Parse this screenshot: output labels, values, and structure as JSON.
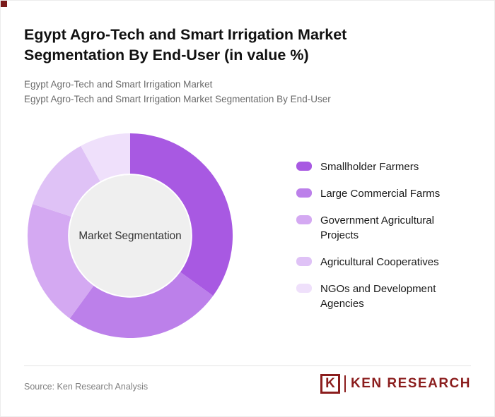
{
  "page": {
    "title": "Egypt Agro-Tech and Smart Irrigation Market Segmentation By End-User (in value %)",
    "subtitle1": "Egypt Agro-Tech and Smart Irrigation Market",
    "subtitle2": "Egypt Agro-Tech and Smart Irrigation Market Segmentation By End-User",
    "source": "Source: Ken Research Analysis",
    "logo": {
      "letter": "K",
      "text": "KEN RESEARCH",
      "color": "#8b1d1d"
    },
    "accent_color": "#7a1a1a"
  },
  "chart_data": {
    "type": "pie",
    "donut": true,
    "title": "Egypt Agro-Tech and Smart Irrigation Market Segmentation By End-User (in value %)",
    "center_label": "Market Segmentation",
    "legend_position": "right",
    "categories": [
      "Smallholder Farmers",
      "Large Commercial Farms",
      "Government Agricultural Projects",
      "Agricultural Cooperatives",
      "NGOs and Development Agencies"
    ],
    "values": [
      35,
      25,
      20,
      12,
      8
    ],
    "colors": [
      "#a859e2",
      "#bc80ea",
      "#d4a9f2",
      "#dfc2f6",
      "#efe0fb"
    ],
    "center_fill": "#efefef"
  }
}
